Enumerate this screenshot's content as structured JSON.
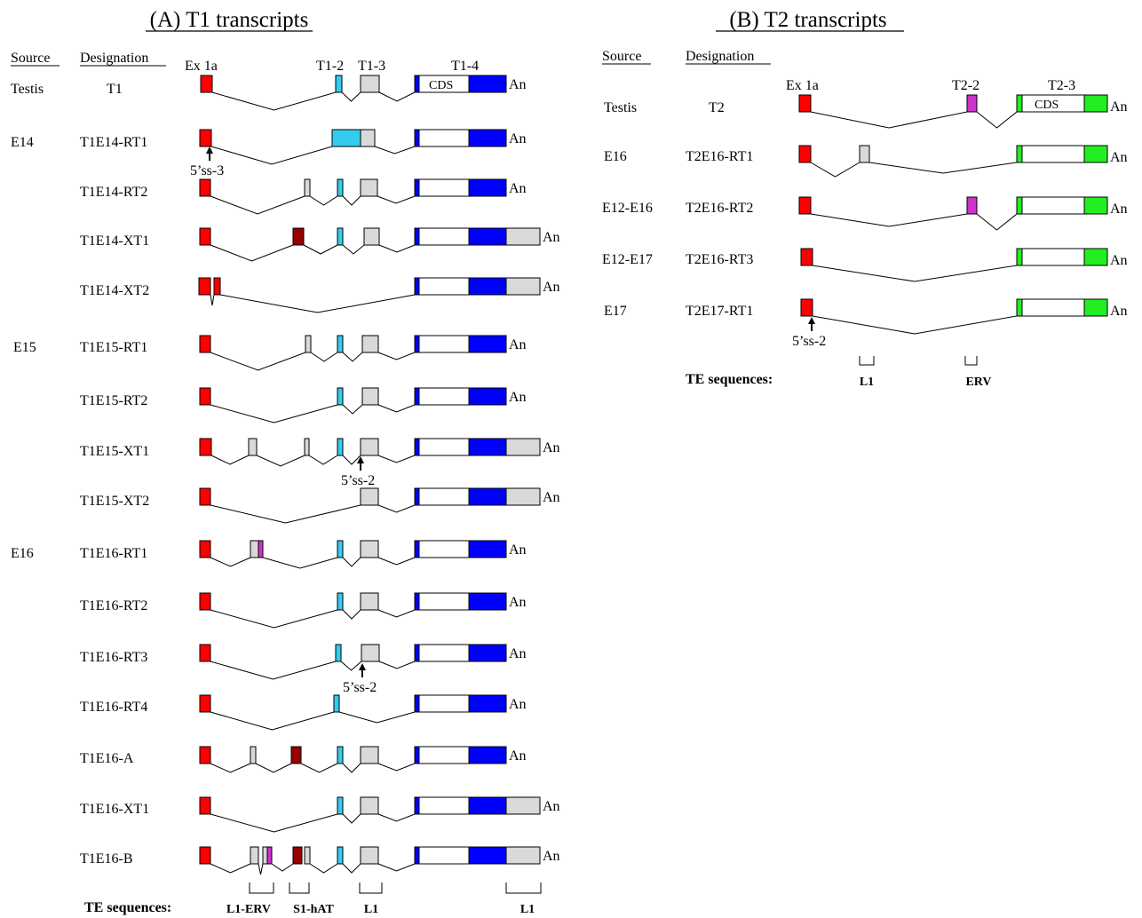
{
  "panelA": {
    "title": "(A) T1 transcripts",
    "col_source": "Source",
    "col_designation": "Designation",
    "exon_labels": [
      "Ex 1a",
      "T1-2",
      "T1-3",
      "T1-4"
    ],
    "cds_label": "CDS",
    "rows": [
      {
        "source": "Testis",
        "designation": "T1",
        "an": "An"
      },
      {
        "source": "E14",
        "designation": "T1E14-RT1",
        "an": "An",
        "note": "5’ss-3"
      },
      {
        "source": "",
        "designation": "T1E14-RT2",
        "an": "An"
      },
      {
        "source": "",
        "designation": "T1E14-XT1",
        "an": "An"
      },
      {
        "source": "",
        "designation": "T1E14-XT2",
        "an": "An"
      },
      {
        "source": "E15",
        "designation": "T1E15-RT1",
        "an": "An"
      },
      {
        "source": "",
        "designation": "T1E15-RT2",
        "an": "An"
      },
      {
        "source": "",
        "designation": "T1E15-XT1",
        "an": "An",
        "note": "5’ss-2"
      },
      {
        "source": "",
        "designation": "T1E15-XT2",
        "an": "An"
      },
      {
        "source": "E16",
        "designation": "T1E16-RT1",
        "an": "An"
      },
      {
        "source": "",
        "designation": "T1E16-RT2",
        "an": "An"
      },
      {
        "source": "",
        "designation": "T1E16-RT3",
        "an": "An",
        "note": "5’ss-2"
      },
      {
        "source": "",
        "designation": "T1E16-RT4",
        "an": "An"
      },
      {
        "source": "",
        "designation": "T1E16-A",
        "an": "An"
      },
      {
        "source": "",
        "designation": "T1E16-XT1",
        "an": "An"
      },
      {
        "source": "",
        "designation": "T1E16-B",
        "an": "An"
      }
    ],
    "te_label": "TE sequences:",
    "te_items": [
      "L1-ERV",
      "S1-hAT",
      "L1",
      "L1"
    ]
  },
  "panelB": {
    "title": "(B) T2 transcripts",
    "col_source": "Source",
    "col_designation": "Designation",
    "exon_labels": [
      "Ex 1a",
      "T2-2",
      "T2-3"
    ],
    "cds_label": "CDS",
    "rows": [
      {
        "source": "Testis",
        "designation": "T2",
        "an": "An"
      },
      {
        "source": "E16",
        "designation": "T2E16-RT1",
        "an": "An"
      },
      {
        "source": "E12-E16",
        "designation": "T2E16-RT2",
        "an": "An"
      },
      {
        "source": "E12-E17",
        "designation": "T2E16-RT3",
        "an": "An"
      },
      {
        "source": "E17",
        "designation": "T2E17-RT1",
        "an": "An",
        "note": "5’ss-2"
      }
    ],
    "te_label": "TE sequences:",
    "te_items": [
      "L1",
      "ERV"
    ]
  },
  "colors": {
    "ex1a": "#ff0000",
    "t12": "#33ccee",
    "gray": "#d9d9d9",
    "blue": "#0000ff",
    "darkred": "#990000",
    "magenta": "#cc33cc",
    "green": "#22ee22"
  }
}
